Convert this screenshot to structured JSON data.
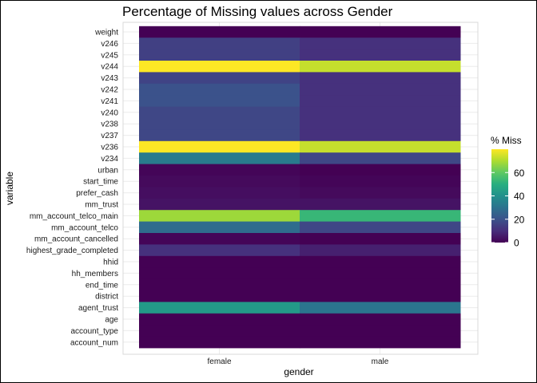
{
  "chart_data": {
    "type": "heatmap",
    "title": "Percentage of Missing values across Gender",
    "xlabel": "gender",
    "ylabel": "variable",
    "x": [
      "female",
      "male"
    ],
    "y": [
      "weight",
      "v246",
      "v245",
      "v244",
      "v243",
      "v242",
      "v241",
      "v240",
      "v238",
      "v237",
      "v236",
      "v234",
      "urban",
      "start_time",
      "prefer_cash",
      "mm_trust",
      "mm_account_telco_main",
      "mm_account_telco",
      "mm_account_cancelled",
      "highest_grade_completed",
      "hhid",
      "hh_members",
      "end_time",
      "district",
      "agent_trust",
      "age",
      "account_type",
      "account_num"
    ],
    "values": [
      [
        0,
        0
      ],
      [
        15,
        11
      ],
      [
        15,
        11
      ],
      [
        80,
        73
      ],
      [
        16,
        11
      ],
      [
        20,
        11
      ],
      [
        20,
        11
      ],
      [
        17,
        11
      ],
      [
        17,
        11
      ],
      [
        17,
        11
      ],
      [
        80,
        73
      ],
      [
        33,
        17
      ],
      [
        1,
        0
      ],
      [
        2,
        1
      ],
      [
        3,
        2
      ],
      [
        4,
        4
      ],
      [
        68,
        53
      ],
      [
        28,
        17
      ],
      [
        1,
        0
      ],
      [
        11,
        7
      ],
      [
        0,
        0
      ],
      [
        0,
        0
      ],
      [
        0,
        0
      ],
      [
        0,
        0
      ],
      [
        43,
        31
      ],
      [
        0,
        0
      ],
      [
        0,
        0
      ],
      [
        0,
        0
      ]
    ],
    "color_range": [
      0,
      80
    ],
    "legend": {
      "title": "% Miss",
      "ticks": [
        0,
        20,
        40,
        60
      ],
      "placement": "right"
    },
    "grid": true
  }
}
